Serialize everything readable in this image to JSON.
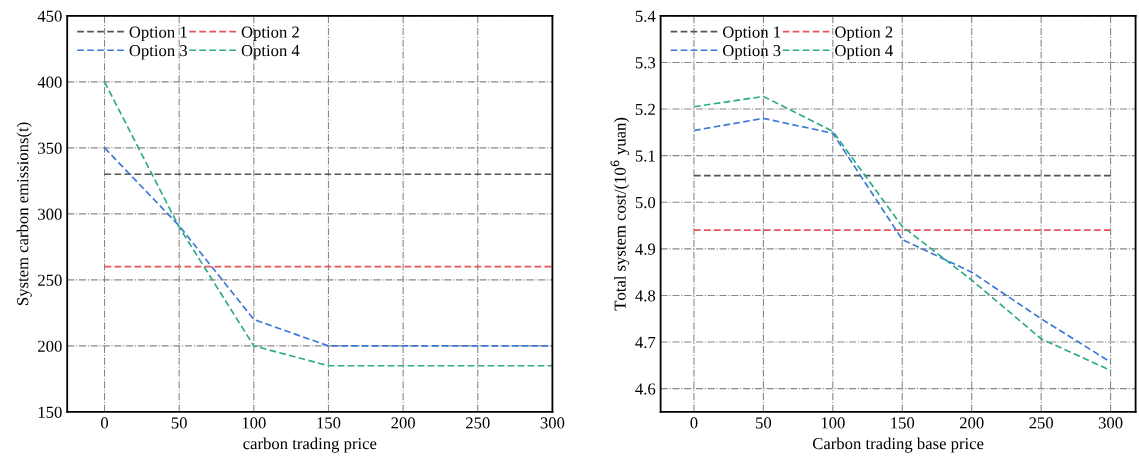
{
  "chart_data": [
    {
      "type": "line",
      "xlabel": "carbon trading price",
      "ylabel": "System carbon emissions(t)",
      "x": [
        0,
        50,
        100,
        150,
        200,
        250,
        300
      ],
      "xlim": [
        -25,
        300
      ],
      "xticks": [
        0,
        50,
        100,
        150,
        200,
        250,
        300
      ],
      "ylim": [
        150,
        450
      ],
      "yticks": [
        150,
        200,
        250,
        300,
        350,
        400,
        450
      ],
      "grid": true,
      "legend": "top left",
      "line_style": "dashed",
      "marker": "none",
      "series": [
        {
          "name": "Option 1",
          "color": "#555555",
          "values": [
            330,
            330,
            330,
            330,
            330,
            330,
            330
          ]
        },
        {
          "name": "Option 2",
          "color": "#e8525a",
          "values": [
            260,
            260,
            260,
            260,
            260,
            260,
            260
          ]
        },
        {
          "name": "Option 3",
          "color": "#3b78d8",
          "values": [
            350,
            291,
            220,
            200,
            200,
            200,
            200
          ]
        },
        {
          "name": "Option 4",
          "color": "#2eaa8a",
          "values": [
            400,
            290,
            200,
            185,
            185,
            185,
            185
          ]
        }
      ]
    },
    {
      "type": "line",
      "xlabel": "Carbon trading base price",
      "ylabel": "Total system cost/(10$^{6}$ yuan)",
      "x": [
        0,
        50,
        100,
        150,
        200,
        250,
        300
      ],
      "xlim": [
        -24,
        318
      ],
      "xticks": [
        0,
        50,
        100,
        150,
        200,
        250,
        300
      ],
      "ylim": [
        4.55,
        5.4
      ],
      "yticks": [
        4.6,
        4.7,
        4.8,
        4.9,
        {
          "value": 5.0,
          "label": "5.0"
        },
        5.1,
        5.2,
        5.3,
        5.4
      ],
      "grid": true,
      "legend": "top left",
      "line_style": "dashed",
      "marker": "none",
      "series": [
        {
          "name": "Option 1",
          "color": "#555555",
          "values": [
            5.057,
            5.057,
            5.057,
            5.057,
            5.057,
            5.057,
            5.057
          ]
        },
        {
          "name": "Option 2",
          "color": "#e8525a",
          "values": [
            4.94,
            4.94,
            4.94,
            4.94,
            4.94,
            4.94,
            4.94
          ]
        },
        {
          "name": "Option 3",
          "color": "#3b78d8",
          "values": [
            5.154,
            5.18,
            5.148,
            4.92,
            4.85,
            4.75,
            4.657
          ]
        },
        {
          "name": "Option 4",
          "color": "#2eaa8a",
          "values": [
            5.205,
            5.227,
            5.152,
            4.948,
            4.833,
            4.707,
            4.639
          ]
        }
      ]
    }
  ]
}
